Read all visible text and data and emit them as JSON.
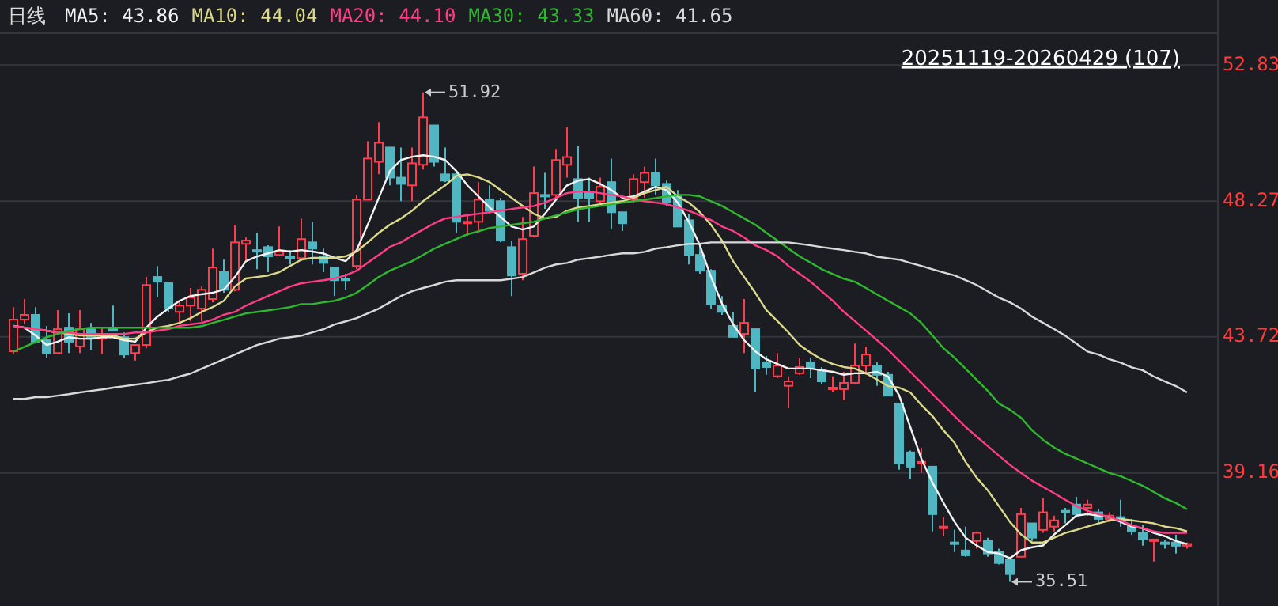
{
  "chart_data": {
    "type": "candlestick",
    "title": "日线",
    "subtitle": "20251119-20260429 (107)",
    "categories": [
      null,
      null,
      null,
      null,
      null,
      null,
      null,
      null,
      null,
      null,
      null,
      null,
      null,
      null,
      null,
      null,
      null,
      null,
      null,
      null,
      null,
      null,
      null,
      null,
      null,
      null,
      null,
      null,
      null,
      null,
      null,
      null,
      null,
      null,
      null,
      null,
      null,
      null,
      null,
      null,
      null,
      null,
      null,
      null,
      null,
      null,
      null,
      null,
      null,
      null,
      null,
      null,
      null,
      null,
      null,
      null,
      null,
      null,
      null,
      null,
      null,
      null,
      null,
      null,
      null,
      null,
      null,
      null,
      null,
      null,
      null,
      null,
      null,
      null,
      null,
      null,
      null,
      null,
      null,
      null,
      null,
      null,
      null,
      null,
      null,
      null,
      null,
      null,
      null,
      null,
      null,
      null,
      null,
      null,
      null,
      null,
      null,
      null,
      null,
      null,
      null,
      null,
      null,
      null,
      null,
      null,
      null
    ],
    "ohlc": [
      [
        43.24,
        44.72,
        43.13,
        44.3
      ],
      [
        44.3,
        44.99,
        44.14,
        44.46
      ],
      [
        44.46,
        44.72,
        43.5,
        43.56
      ],
      [
        43.61,
        44.09,
        43.03,
        43.18
      ],
      [
        43.18,
        44.62,
        43.18,
        43.98
      ],
      [
        44.03,
        44.51,
        43.18,
        43.56
      ],
      [
        43.4,
        44.62,
        43.18,
        43.98
      ],
      [
        43.98,
        44.19,
        43.29,
        43.66
      ],
      [
        43.66,
        44.03,
        43.13,
        43.77
      ],
      [
        43.98,
        44.77,
        43.93,
        43.93
      ],
      [
        43.71,
        43.87,
        43.03,
        43.13
      ],
      [
        43.18,
        43.45,
        42.93,
        43.45
      ],
      [
        43.45,
        45.73,
        43.34,
        45.46
      ],
      [
        45.73,
        46.1,
        45.04,
        45.57
      ],
      [
        45.52,
        45.57,
        44.56,
        44.67
      ],
      [
        44.56,
        44.93,
        44.14,
        44.77
      ],
      [
        44.77,
        45.36,
        44.24,
        45.04
      ],
      [
        44.67,
        45.41,
        44.24,
        45.3
      ],
      [
        44.99,
        46.68,
        44.88,
        46.05
      ],
      [
        45.89,
        46.31,
        45.2,
        45.3
      ],
      [
        45.3,
        47.48,
        45.25,
        46.89
      ],
      [
        46.84,
        47.05,
        46.26,
        46.95
      ],
      [
        46.63,
        47.21,
        45.99,
        46.58
      ],
      [
        46.73,
        46.79,
        45.89,
        46.42
      ],
      [
        46.47,
        47.42,
        46.42,
        46.58
      ],
      [
        46.42,
        46.63,
        46.15,
        46.36
      ],
      [
        46.36,
        47.69,
        46.26,
        47.0
      ],
      [
        46.89,
        47.58,
        46.15,
        46.68
      ],
      [
        46.42,
        46.68,
        45.89,
        46.2
      ],
      [
        46.05,
        46.05,
        45.09,
        45.62
      ],
      [
        45.68,
        45.84,
        45.3,
        45.62
      ],
      [
        46.1,
        48.48,
        45.99,
        48.32
      ],
      [
        48.32,
        50.28,
        48.32,
        49.7
      ],
      [
        49.59,
        50.92,
        49.17,
        50.23
      ],
      [
        50.07,
        50.07,
        48.8,
        49.06
      ],
      [
        49.06,
        50.07,
        48.27,
        48.85
      ],
      [
        48.8,
        50.07,
        48.27,
        49.54
      ],
      [
        49.49,
        51.92,
        49.33,
        51.08
      ],
      [
        50.81,
        50.81,
        49.43,
        49.59
      ],
      [
        49.17,
        50.07,
        48.91,
        48.96
      ],
      [
        49.17,
        49.28,
        47.21,
        47.58
      ],
      [
        47.53,
        47.85,
        47.11,
        47.58
      ],
      [
        47.58,
        48.91,
        47.21,
        48.32
      ],
      [
        48.32,
        48.8,
        47.85,
        47.95
      ],
      [
        48.27,
        48.38,
        46.89,
        46.95
      ],
      [
        46.73,
        46.95,
        45.09,
        45.78
      ],
      [
        45.84,
        47.74,
        45.62,
        47.0
      ],
      [
        47.11,
        49.43,
        47.05,
        48.54
      ],
      [
        48.48,
        49.22,
        48.01,
        48.43
      ],
      [
        48.48,
        50.02,
        48.38,
        49.65
      ],
      [
        49.49,
        50.76,
        49.06,
        49.75
      ],
      [
        49.01,
        50.12,
        47.58,
        48.38
      ],
      [
        48.59,
        49.06,
        47.58,
        48.38
      ],
      [
        48.27,
        49.06,
        48.22,
        48.75
      ],
      [
        48.91,
        49.7,
        47.32,
        47.9
      ],
      [
        47.9,
        47.9,
        47.27,
        47.53
      ],
      [
        48.38,
        49.17,
        48.22,
        49.01
      ],
      [
        48.91,
        49.43,
        48.38,
        49.22
      ],
      [
        49.22,
        49.7,
        48.48,
        48.8
      ],
      [
        48.85,
        48.96,
        48.11,
        48.22
      ],
      [
        48.43,
        48.64,
        47.42,
        47.42
      ],
      [
        47.63,
        47.85,
        46.15,
        46.47
      ],
      [
        46.47,
        46.79,
        45.84,
        45.94
      ],
      [
        45.94,
        45.99,
        44.67,
        44.83
      ],
      [
        44.77,
        45.09,
        44.46,
        44.56
      ],
      [
        44.09,
        44.56,
        43.72,
        43.72
      ],
      [
        43.82,
        44.99,
        43.18,
        44.19
      ],
      [
        43.98,
        43.98,
        41.86,
        42.66
      ],
      [
        42.87,
        43.08,
        42.45,
        42.71
      ],
      [
        42.4,
        43.18,
        42.34,
        42.76
      ],
      [
        42.08,
        42.4,
        41.33,
        42.23
      ],
      [
        42.5,
        43.03,
        42.45,
        42.71
      ],
      [
        42.87,
        43.03,
        42.34,
        42.66
      ],
      [
        42.6,
        42.71,
        42.13,
        42.23
      ],
      [
        41.97,
        42.4,
        41.86,
        42.02
      ],
      [
        41.97,
        42.55,
        41.6,
        42.18
      ],
      [
        42.18,
        43.5,
        42.13,
        42.76
      ],
      [
        42.76,
        43.4,
        42.45,
        43.13
      ],
      [
        42.76,
        42.87,
        42.08,
        42.45
      ],
      [
        42.45,
        42.55,
        41.75,
        41.75
      ],
      [
        41.49,
        41.49,
        39.27,
        39.48
      ],
      [
        39.85,
        39.91,
        38.95,
        39.37
      ],
      [
        39.48,
        40.01,
        39.16,
        39.53
      ],
      [
        39.37,
        39.37,
        37.2,
        37.78
      ],
      [
        37.31,
        37.68,
        37.04,
        37.36
      ],
      [
        36.83,
        37.25,
        36.51,
        36.78
      ],
      [
        36.56,
        37.36,
        36.35,
        36.4
      ],
      [
        36.88,
        37.2,
        36.62,
        37.15
      ],
      [
        36.88,
        36.99,
        36.35,
        36.46
      ],
      [
        36.51,
        36.62,
        36.09,
        36.14
      ],
      [
        36.25,
        36.35,
        35.51,
        35.77
      ],
      [
        36.35,
        37.99,
        36.35,
        37.78
      ],
      [
        37.47,
        37.47,
        36.88,
        36.99
      ],
      [
        37.25,
        38.31,
        37.15,
        37.84
      ],
      [
        37.36,
        37.73,
        37.2,
        37.57
      ],
      [
        37.89,
        37.99,
        37.47,
        37.84
      ],
      [
        38.1,
        38.36,
        37.68,
        37.78
      ],
      [
        37.99,
        38.26,
        37.73,
        38.1
      ],
      [
        37.84,
        37.94,
        37.47,
        37.62
      ],
      [
        37.62,
        37.84,
        37.52,
        37.73
      ],
      [
        37.68,
        38.26,
        37.36,
        37.57
      ],
      [
        37.36,
        37.62,
        37.09,
        37.2
      ],
      [
        37.15,
        37.41,
        36.72,
        36.93
      ],
      [
        36.88,
        36.93,
        36.19,
        36.93
      ],
      [
        36.83,
        36.93,
        36.62,
        36.78
      ],
      [
        36.83,
        37.09,
        36.46,
        36.72
      ],
      [
        36.72,
        36.83,
        36.62,
        36.78
      ]
    ],
    "colors": [
      "#ff3b4e",
      "#ff3b4e",
      "#4fb6c2",
      "#4fb6c2",
      "#ff3b4e",
      "#4fb6c2",
      "#ff3b4e",
      "#4fb6c2",
      "#ff3b4e",
      "#4fb6c2",
      "#4fb6c2",
      "#ff3b4e",
      "#ff3b4e",
      "#4fb6c2",
      "#4fb6c2",
      "#ff3b4e",
      "#ff3b4e",
      "#ff3b4e",
      "#ff3b4e",
      "#4fb6c2",
      "#ff3b4e",
      "#ff3b4e",
      "#4fb6c2",
      "#4fb6c2",
      "#ff3b4e",
      "#4fb6c2",
      "#ff3b4e",
      "#4fb6c2",
      "#4fb6c2",
      "#4fb6c2",
      "#4fb6c2",
      "#ff3b4e",
      "#ff3b4e",
      "#ff3b4e",
      "#4fb6c2",
      "#4fb6c2",
      "#ff3b4e",
      "#ff3b4e",
      "#4fb6c2",
      "#4fb6c2",
      "#4fb6c2",
      "#ff3b4e",
      "#ff3b4e",
      "#4fb6c2",
      "#4fb6c2",
      "#4fb6c2",
      "#ff3b4e",
      "#ff3b4e",
      "#4fb6c2",
      "#ff3b4e",
      "#ff3b4e",
      "#4fb6c2",
      "#4fb6c2",
      "#ff3b4e",
      "#4fb6c2",
      "#4fb6c2",
      "#ff3b4e",
      "#ff3b4e",
      "#4fb6c2",
      "#4fb6c2",
      "#4fb6c2",
      "#4fb6c2",
      "#4fb6c2",
      "#4fb6c2",
      "#4fb6c2",
      "#4fb6c2",
      "#ff3b4e",
      "#4fb6c2",
      "#4fb6c2",
      "#ff3b4e",
      "#ff3b4e",
      "#ff3b4e",
      "#4fb6c2",
      "#4fb6c2",
      "#ff3b4e",
      "#ff3b4e",
      "#ff3b4e",
      "#ff3b4e",
      "#4fb6c2",
      "#4fb6c2",
      "#4fb6c2",
      "#4fb6c2",
      "#ff3b4e",
      "#4fb6c2",
      "#ff3b4e",
      "#4fb6c2",
      "#4fb6c2",
      "#ff3b4e",
      "#4fb6c2",
      "#4fb6c2",
      "#4fb6c2",
      "#ff3b4e",
      "#4fb6c2",
      "#ff3b4e",
      "#ff3b4e",
      "#4fb6c2",
      "#4fb6c2",
      "#ff3b4e",
      "#4fb6c2",
      "#ff3b4e",
      "#4fb6c2",
      "#4fb6c2",
      "#4fb6c2",
      "#ff3b4e",
      "#4fb6c2",
      "#4fb6c2",
      "#ff3b4e"
    ],
    "series": [
      {
        "name": "MA5: 43.86",
        "type": "line",
        "color": "#f2f2f2",
        "values": [
          44.09,
          44.03,
          43.77,
          43.45,
          43.56,
          43.71,
          43.66,
          43.66,
          43.71,
          43.71,
          43.61,
          43.56,
          44.03,
          44.4,
          44.67,
          44.93,
          45.09,
          45.15,
          45.2,
          45.31,
          45.73,
          46.26,
          46.42,
          46.52,
          46.63,
          46.58,
          46.63,
          46.58,
          46.52,
          46.37,
          46.26,
          46.63,
          47.48,
          48.38,
          49.28,
          49.65,
          49.76,
          49.81,
          49.76,
          49.65,
          49.28,
          48.8,
          48.43,
          48.06,
          47.74,
          47.42,
          47.32,
          47.42,
          47.85,
          48.32,
          48.8,
          48.96,
          49.01,
          48.85,
          48.64,
          48.38,
          48.43,
          48.59,
          48.75,
          48.64,
          48.22,
          47.58,
          46.79,
          45.73,
          44.83,
          44.14,
          43.61,
          43.24,
          42.97,
          42.81,
          42.66,
          42.66,
          42.66,
          42.6,
          42.55,
          42.45,
          42.5,
          42.5,
          42.55,
          42.39,
          41.76,
          40.7,
          39.64,
          38.84,
          38.16,
          37.52,
          36.99,
          36.73,
          36.51,
          36.46,
          36.3,
          36.57,
          36.67,
          36.73,
          37.1,
          37.41,
          37.73,
          37.78,
          37.73,
          37.68,
          37.52,
          37.36,
          37.31,
          37.15,
          37.04,
          36.88,
          36.78
        ]
      },
      {
        "name": "MA10: 44.04",
        "type": "line",
        "color": "#dcd98a",
        "values": [
          44.09,
          44.03,
          43.98,
          43.93,
          43.87,
          43.82,
          43.77,
          43.77,
          43.77,
          43.77,
          43.66,
          43.66,
          43.87,
          44.03,
          44.09,
          44.19,
          44.35,
          44.56,
          44.72,
          44.93,
          45.41,
          45.68,
          45.73,
          45.78,
          45.89,
          46.1,
          46.31,
          46.37,
          46.37,
          46.37,
          46.42,
          46.58,
          46.89,
          47.21,
          47.48,
          47.69,
          47.95,
          48.27,
          48.54,
          48.8,
          49.12,
          49.17,
          49.07,
          48.91,
          48.64,
          48.38,
          48.11,
          47.85,
          47.69,
          47.74,
          47.95,
          48.06,
          48.11,
          48.17,
          48.22,
          48.27,
          48.38,
          48.54,
          48.64,
          48.75,
          48.43,
          48.22,
          47.9,
          47.48,
          46.95,
          46.26,
          45.73,
          45.2,
          44.62,
          44.25,
          43.87,
          43.45,
          43.19,
          42.97,
          42.81,
          42.71,
          42.66,
          42.5,
          42.29,
          42.07,
          42.02,
          41.86,
          41.44,
          41.07,
          40.59,
          40.17,
          39.53,
          39.0,
          38.58,
          38.05,
          37.52,
          37.1,
          36.83,
          36.83,
          36.99,
          37.15,
          37.25,
          37.36,
          37.47,
          37.57,
          37.62,
          37.57,
          37.52,
          37.47,
          37.36,
          37.31,
          37.2
        ]
      },
      {
        "name": "MA20: 44.10",
        "type": "line",
        "color": "#ff3d85",
        "values": [
          44.08,
          44.03,
          43.98,
          43.93,
          43.87,
          43.87,
          43.82,
          43.82,
          43.82,
          43.82,
          43.82,
          43.87,
          43.87,
          43.93,
          43.98,
          44.09,
          44.14,
          44.19,
          44.3,
          44.46,
          44.56,
          44.77,
          44.93,
          45.09,
          45.25,
          45.41,
          45.52,
          45.57,
          45.62,
          45.68,
          45.78,
          45.94,
          46.21,
          46.47,
          46.74,
          46.89,
          47.11,
          47.32,
          47.53,
          47.69,
          47.74,
          47.8,
          47.85,
          47.9,
          47.95,
          48.01,
          48.06,
          48.11,
          48.22,
          48.38,
          48.54,
          48.59,
          48.59,
          48.54,
          48.48,
          48.43,
          48.32,
          48.27,
          48.22,
          48.17,
          48.06,
          47.95,
          47.8,
          47.64,
          47.42,
          47.27,
          47.05,
          46.79,
          46.63,
          46.42,
          46.1,
          45.84,
          45.57,
          45.25,
          44.93,
          44.56,
          44.25,
          43.93,
          43.61,
          43.29,
          42.92,
          42.55,
          42.18,
          41.81,
          41.44,
          41.07,
          40.7,
          40.38,
          40.06,
          39.74,
          39.43,
          39.16,
          38.9,
          38.69,
          38.48,
          38.26,
          38.05,
          37.89,
          37.78,
          37.68,
          37.57,
          37.41,
          37.31,
          37.2,
          37.15,
          37.15,
          37.15
        ]
      },
      {
        "name": "MA30: 43.33",
        "type": "line",
        "color": "#2fb82f",
        "values": [
          43.23,
          43.39,
          43.55,
          43.71,
          43.82,
          43.92,
          43.98,
          44.03,
          44.03,
          44.03,
          44.03,
          44.03,
          44.03,
          44.03,
          44.03,
          44.03,
          44.03,
          44.08,
          44.19,
          44.29,
          44.4,
          44.51,
          44.56,
          44.61,
          44.66,
          44.72,
          44.82,
          44.82,
          44.88,
          44.93,
          45.04,
          45.2,
          45.46,
          45.73,
          45.94,
          46.1,
          46.26,
          46.47,
          46.68,
          46.84,
          47.0,
          47.16,
          47.26,
          47.37,
          47.42,
          47.48,
          47.53,
          47.58,
          47.69,
          47.79,
          47.9,
          48.0,
          48.06,
          48.11,
          48.16,
          48.22,
          48.27,
          48.32,
          48.37,
          48.43,
          48.48,
          48.48,
          48.43,
          48.27,
          48.11,
          47.9,
          47.69,
          47.48,
          47.21,
          46.95,
          46.68,
          46.42,
          46.21,
          45.99,
          45.83,
          45.67,
          45.57,
          45.36,
          45.14,
          44.93,
          44.72,
          44.51,
          44.19,
          43.77,
          43.34,
          43.02,
          42.65,
          42.28,
          41.91,
          41.49,
          41.28,
          41.01,
          40.59,
          40.27,
          40.01,
          39.8,
          39.64,
          39.48,
          39.32,
          39.16,
          39.05,
          38.89,
          38.73,
          38.52,
          38.31,
          38.15,
          37.94
        ]
      },
      {
        "name": "MA60: 41.65",
        "type": "line",
        "color": "#d9d9d9",
        "values": [
          41.64,
          41.64,
          41.7,
          41.7,
          41.75,
          41.8,
          41.86,
          41.91,
          41.96,
          42.02,
          42.07,
          42.12,
          42.17,
          42.23,
          42.28,
          42.39,
          42.49,
          42.65,
          42.81,
          42.97,
          43.13,
          43.29,
          43.45,
          43.55,
          43.66,
          43.71,
          43.76,
          43.87,
          43.98,
          44.14,
          44.24,
          44.35,
          44.51,
          44.67,
          44.88,
          45.09,
          45.25,
          45.36,
          45.46,
          45.57,
          45.62,
          45.62,
          45.62,
          45.62,
          45.62,
          45.67,
          45.73,
          45.88,
          46.04,
          46.15,
          46.2,
          46.31,
          46.36,
          46.41,
          46.47,
          46.52,
          46.52,
          46.57,
          46.68,
          46.73,
          46.79,
          46.84,
          46.84,
          46.89,
          46.89,
          46.89,
          46.89,
          46.89,
          46.89,
          46.89,
          46.89,
          46.84,
          46.79,
          46.73,
          46.68,
          46.63,
          46.57,
          46.52,
          46.41,
          46.36,
          46.31,
          46.2,
          46.1,
          45.99,
          45.88,
          45.78,
          45.62,
          45.46,
          45.25,
          45.04,
          44.88,
          44.67,
          44.4,
          44.19,
          43.98,
          43.76,
          43.5,
          43.23,
          43.13,
          42.97,
          42.86,
          42.7,
          42.6,
          42.39,
          42.23,
          42.07,
          41.86
        ]
      }
    ],
    "ylim": [
      34.7,
      53.9
    ],
    "yticks": [
      39.16,
      43.72,
      48.27,
      52.83
    ],
    "grid": "y",
    "legend": "top left",
    "annotations": [
      "51.92",
      "35.51"
    ]
  }
}
